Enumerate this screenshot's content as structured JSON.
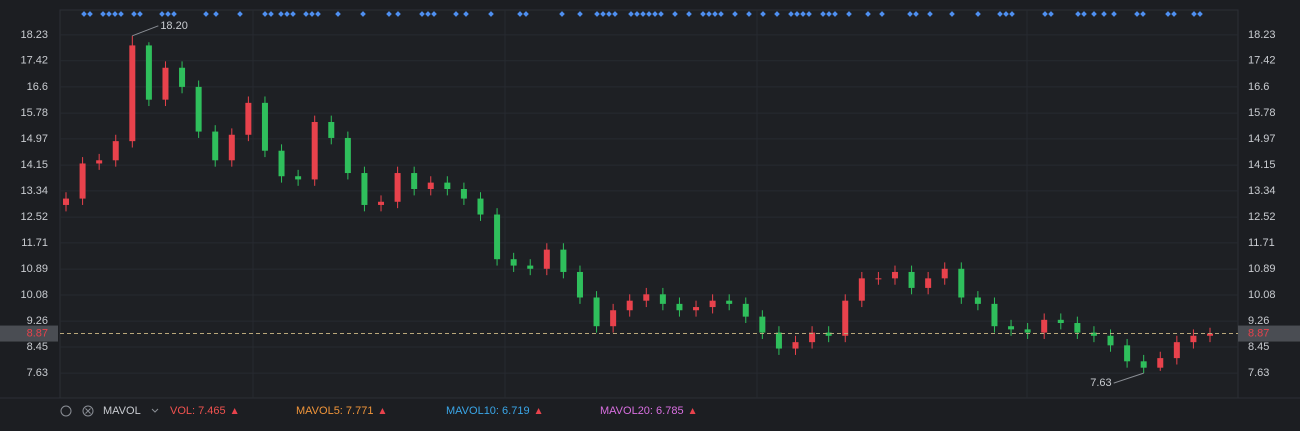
{
  "chart_data": {
    "type": "candlestick",
    "ylim": [
      6.85,
      19.01
    ],
    "yticks": [
      18.23,
      17.42,
      16.6,
      15.78,
      14.97,
      14.15,
      13.34,
      12.52,
      11.71,
      10.89,
      10.08,
      9.26,
      8.45,
      7.63
    ],
    "grid": true,
    "up_color": "#e8424c",
    "down_color": "#2fbf5c",
    "open": [
      12.9,
      13.1,
      14.2,
      14.3,
      14.9,
      17.9,
      16.2,
      17.2,
      16.6,
      15.2,
      14.3,
      15.1,
      16.1,
      14.6,
      13.8,
      13.7,
      15.5,
      15.0,
      13.9,
      12.9,
      13.0,
      13.9,
      13.4,
      13.6,
      13.4,
      13.1,
      12.6,
      11.2,
      11.0,
      10.9,
      11.5,
      10.8,
      10.0,
      9.1,
      9.6,
      9.9,
      10.1,
      9.8,
      9.6,
      9.7,
      9.9,
      9.8,
      9.4,
      8.9,
      8.4,
      8.6,
      8.9,
      8.8,
      9.9,
      10.6,
      10.6,
      10.8,
      10.3,
      10.6,
      10.9,
      10.0,
      9.8,
      9.1,
      9.0,
      8.9,
      9.3,
      9.2,
      8.9,
      8.8,
      8.5,
      8.0,
      7.8,
      8.1,
      8.6,
      8.8
    ],
    "high": [
      13.3,
      14.4,
      14.5,
      15.1,
      18.2,
      18.0,
      17.4,
      17.4,
      16.8,
      15.4,
      15.3,
      16.3,
      16.3,
      14.8,
      14.0,
      15.7,
      15.7,
      15.2,
      14.1,
      13.2,
      14.1,
      14.1,
      13.8,
      13.8,
      13.6,
      13.3,
      12.8,
      11.4,
      11.2,
      11.7,
      11.7,
      11.0,
      10.2,
      9.8,
      10.1,
      10.3,
      10.3,
      10.0,
      9.9,
      10.1,
      10.1,
      10.0,
      9.6,
      9.1,
      8.8,
      9.1,
      9.1,
      10.1,
      10.8,
      10.8,
      11.0,
      11.0,
      10.8,
      11.1,
      11.1,
      10.2,
      10.0,
      9.3,
      9.2,
      9.5,
      9.5,
      9.4,
      9.1,
      9.0,
      8.7,
      8.2,
      8.3,
      8.8,
      9.0,
      9.05
    ],
    "low": [
      12.7,
      12.9,
      14.0,
      14.1,
      14.7,
      16.0,
      16.0,
      16.4,
      15.0,
      14.1,
      14.1,
      14.9,
      14.4,
      13.6,
      13.5,
      13.5,
      14.8,
      13.7,
      12.7,
      12.7,
      12.8,
      13.2,
      13.2,
      13.2,
      12.9,
      12.4,
      11.0,
      10.8,
      10.7,
      10.7,
      10.6,
      9.8,
      8.9,
      8.9,
      9.4,
      9.7,
      9.6,
      9.4,
      9.4,
      9.5,
      9.6,
      9.2,
      8.7,
      8.2,
      8.2,
      8.4,
      8.6,
      8.6,
      9.7,
      10.4,
      10.4,
      10.1,
      10.1,
      10.4,
      9.8,
      9.6,
      8.9,
      8.8,
      8.7,
      8.7,
      9.0,
      8.7,
      8.6,
      8.3,
      7.8,
      7.63,
      7.7,
      7.9,
      8.4,
      8.6
    ],
    "close": [
      13.1,
      14.2,
      14.3,
      14.9,
      17.9,
      16.2,
      17.2,
      16.6,
      15.2,
      14.3,
      15.1,
      16.1,
      14.6,
      13.8,
      13.7,
      15.5,
      15.0,
      13.9,
      12.9,
      13.0,
      13.9,
      13.4,
      13.6,
      13.4,
      13.1,
      12.6,
      11.2,
      11.0,
      10.9,
      11.5,
      10.8,
      10.0,
      9.1,
      9.6,
      9.9,
      10.1,
      9.8,
      9.6,
      9.7,
      9.9,
      9.8,
      9.4,
      8.9,
      8.4,
      8.6,
      8.9,
      8.8,
      9.9,
      10.6,
      10.6,
      10.8,
      10.3,
      10.6,
      10.9,
      10.0,
      9.8,
      9.1,
      9.0,
      8.9,
      9.3,
      9.2,
      8.9,
      8.8,
      8.5,
      8.0,
      7.8,
      8.1,
      8.6,
      8.8,
      8.87
    ],
    "max_label": {
      "value": 18.2,
      "label": "18.20"
    },
    "min_label": {
      "value": 7.63,
      "label": "7.63"
    },
    "current_price": {
      "value": 8.87,
      "label": "8.87"
    },
    "indicator": {
      "name": "MAVOL",
      "items": [
        {
          "label": "VOL: 7.465",
          "color": "#f0524f"
        },
        {
          "label": "MAVOL5: 7.771",
          "color": "#f0953a"
        },
        {
          "label": "MAVOL10: 6.719",
          "color": "#3aa6e8"
        },
        {
          "label": "MAVOL20: 6.785",
          "color": "#d86fe0"
        }
      ]
    }
  }
}
